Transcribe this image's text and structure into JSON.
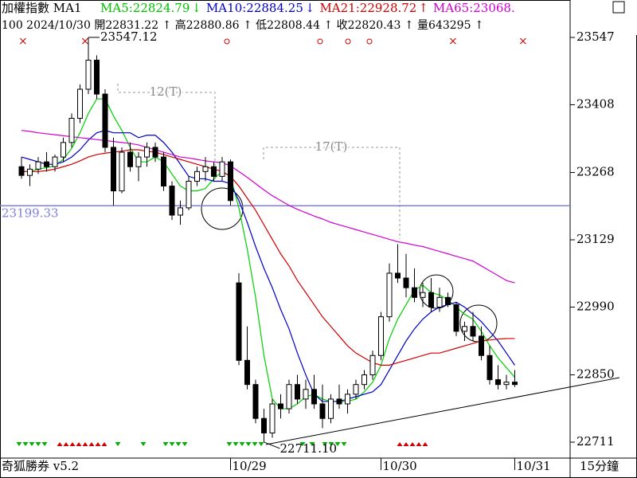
{
  "chart_data": {
    "type": "candlestick",
    "header": {
      "symbol": "加權指數 MA1",
      "ma_labels": [
        {
          "text": "MA5:22824.79",
          "arrow": "↓",
          "color": "#00c000"
        },
        {
          "text": "MA10:22884.25",
          "arrow": "↓",
          "color": "#0000c8"
        },
        {
          "text": "MA21:22928.72",
          "arrow": "↑",
          "color": "#d00000"
        },
        {
          "text": "MA65:23068.",
          "arrow": "",
          "color": "#d000d0"
        }
      ],
      "quote": "100 2024/10/30 開22831.22 ↑ 高22880.86 ↑ 低22808.44 ↑ 收22820.43 ↑ 量643295 ↑"
    },
    "footer_left": "奇狐勝券 v5.2",
    "footer_right": "15分鐘",
    "categories": [
      null,
      null,
      null,
      null,
      null,
      null,
      null,
      null,
      null,
      null,
      null,
      null,
      null,
      null,
      null,
      null,
      null,
      null,
      null,
      null,
      null,
      null,
      null,
      null,
      null,
      "10/29",
      null,
      null,
      null,
      null,
      null,
      null,
      null,
      null,
      null,
      null,
      null,
      null,
      null,
      null,
      null,
      null,
      null,
      "10/30",
      null,
      null,
      null,
      null,
      null,
      null,
      null,
      null,
      null,
      null,
      null,
      null,
      null,
      null,
      null,
      "10/31"
    ],
    "open": [
      23280,
      23262,
      23275,
      23290,
      23280,
      23300,
      23330,
      23380,
      23440,
      23500,
      23430,
      23320,
      23230,
      23310,
      23280,
      23300,
      23320,
      23300,
      23240,
      23180,
      23195,
      23250,
      23270,
      23280,
      23260,
      23290,
      23040,
      22880,
      22830,
      22760,
      22730,
      22790,
      22780,
      22830,
      22800,
      22820,
      22790,
      22760,
      22800,
      22790,
      22810,
      22830,
      22850,
      22890,
      22970,
      23060,
      23050,
      23030,
      23010,
      23020,
      22990,
      23010,
      22995,
      22940,
      22950,
      22930,
      22890,
      22840,
      22830,
      22835
    ],
    "high": [
      23300,
      23285,
      23300,
      23310,
      23305,
      23340,
      23390,
      23450,
      23547.12,
      23510,
      23440,
      23340,
      23320,
      23330,
      23310,
      23330,
      23330,
      23310,
      23250,
      23210,
      23260,
      23280,
      23300,
      23290,
      23300,
      23295,
      23060,
      22950,
      22840,
      22780,
      22800,
      22810,
      22840,
      22850,
      22840,
      22850,
      22830,
      22810,
      22830,
      22820,
      22840,
      22860,
      22900,
      22980,
      23080,
      23120,
      23100,
      23070,
      23040,
      23050,
      23030,
      23020,
      23000,
      22960,
      22980,
      22950,
      22910,
      22870,
      22850,
      22860
    ],
    "low": [
      23255,
      23240,
      23265,
      23270,
      23270,
      23290,
      23320,
      23370,
      23430,
      23420,
      23310,
      23200,
      23225,
      23270,
      23250,
      23280,
      23290,
      23230,
      23170,
      23160,
      23190,
      23240,
      23250,
      23250,
      23250,
      23200,
      22870,
      22820,
      22750,
      22711.1,
      22720,
      22760,
      22770,
      22790,
      22780,
      22780,
      22740,
      22750,
      22780,
      22770,
      22800,
      22820,
      22840,
      22880,
      22960,
      23040,
      23010,
      23000,
      22990,
      22980,
      22980,
      22990,
      22930,
      22920,
      22920,
      22880,
      22830,
      22820,
      22820,
      22825
    ],
    "close": [
      23262,
      23275,
      23290,
      23280,
      23300,
      23330,
      23380,
      23440,
      23500,
      23430,
      23320,
      23230,
      23310,
      23280,
      23300,
      23320,
      23300,
      23240,
      23180,
      23195,
      23250,
      23270,
      23280,
      23260,
      23290,
      23210,
      22880,
      22830,
      22760,
      22730,
      22790,
      22780,
      22830,
      22800,
      22820,
      22790,
      22760,
      22800,
      22790,
      22810,
      22830,
      22850,
      22890,
      22970,
      23060,
      23050,
      23030,
      23010,
      23020,
      22990,
      23010,
      22995,
      22940,
      22950,
      22930,
      22890,
      22840,
      22830,
      22835,
      22830
    ],
    "series": [
      {
        "name": "MA5",
        "color": "#00d000",
        "values": [
          23270,
          23270,
          23275,
          23278,
          23282,
          23295,
          23318,
          23350,
          23390,
          23420,
          23420,
          23385,
          23355,
          23320,
          23290,
          23290,
          23300,
          23290,
          23265,
          23240,
          23230,
          23230,
          23235,
          23255,
          23270,
          23260,
          23195,
          23110,
          23010,
          22890,
          22800,
          22780,
          22780,
          22790,
          22805,
          22810,
          22800,
          22795,
          22795,
          22795,
          22800,
          22815,
          22835,
          22870,
          22925,
          22965,
          22995,
          23025,
          23035,
          23020,
          23015,
          23005,
          22990,
          22975,
          22965,
          22940,
          22910,
          22885,
          22865,
          22845
        ]
      },
      {
        "name": "MA10",
        "color": "#0000c8",
        "values": [
          23300,
          23295,
          23290,
          23285,
          23285,
          23290,
          23300,
          23315,
          23335,
          23350,
          23355,
          23350,
          23350,
          23350,
          23340,
          23345,
          23345,
          23330,
          23310,
          23285,
          23260,
          23255,
          23255,
          23250,
          23250,
          23245,
          23210,
          23165,
          23115,
          23070,
          23030,
          22985,
          22945,
          22895,
          22850,
          22810,
          22795,
          22795,
          22795,
          22800,
          22805,
          22810,
          22815,
          22830,
          22860,
          22890,
          22920,
          22945,
          22965,
          22980,
          22990,
          22995,
          23000,
          22990,
          22975,
          22960,
          22940,
          22920,
          22895,
          22870
        ]
      },
      {
        "name": "MA21",
        "color": "#d00000",
        "values": [
          23270,
          23270,
          23270,
          23272,
          23275,
          23280,
          23285,
          23292,
          23300,
          23305,
          23308,
          23310,
          23312,
          23315,
          23315,
          23312,
          23310,
          23305,
          23300,
          23295,
          23290,
          23285,
          23280,
          23275,
          23270,
          23260,
          23240,
          23215,
          23190,
          23160,
          23130,
          23100,
          23075,
          23045,
          23020,
          22995,
          22970,
          22950,
          22930,
          22910,
          22895,
          22885,
          22875,
          22870,
          22870,
          22875,
          22880,
          22885,
          22890,
          22895,
          22895,
          22900,
          22905,
          22910,
          22915,
          22920,
          22922,
          22924,
          22925,
          22925
        ]
      },
      {
        "name": "MA65",
        "color": "#d000d0",
        "values": [
          23355,
          23353,
          23350,
          23348,
          23346,
          23344,
          23342,
          23340,
          23338,
          23336,
          23334,
          23332,
          23330,
          23328,
          23325,
          23320,
          23315,
          23310,
          23305,
          23300,
          23298,
          23295,
          23292,
          23290,
          23288,
          23282,
          23270,
          23258,
          23245,
          23232,
          23220,
          23210,
          23200,
          23192,
          23185,
          23178,
          23172,
          23165,
          23160,
          23155,
          23150,
          23145,
          23140,
          23135,
          23130,
          23125,
          23122,
          23118,
          23115,
          23110,
          23105,
          23100,
          23095,
          23090,
          23085,
          23075,
          23065,
          23055,
          23045,
          23040
        ]
      }
    ],
    "ylim": [
      22711,
      23547
    ],
    "yticks": [
      23547,
      23408,
      23268,
      23129,
      22990,
      22850,
      22711
    ],
    "hline": {
      "value": 23199.33,
      "label": "23199.33",
      "color": "#8080e0"
    },
    "high_label": "23547.12",
    "low_label": "22711.10",
    "annotations": [
      "12(T)",
      "17(T)"
    ],
    "up_color": "#ffffff",
    "down_color": "#000000"
  }
}
